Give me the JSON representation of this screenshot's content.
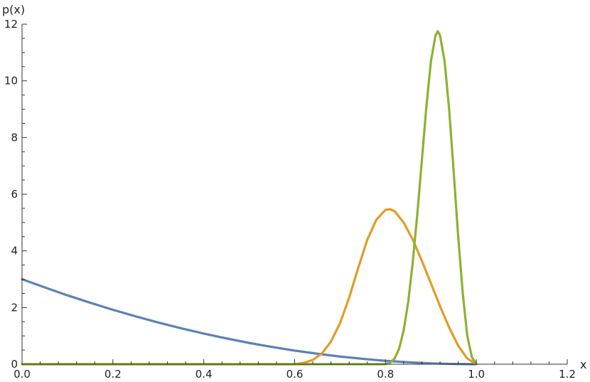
{
  "chart_data": {
    "type": "line",
    "title": "",
    "xlabel": "x",
    "ylabel": "p(x)",
    "xlim": [
      0,
      1.2
    ],
    "ylim": [
      0,
      12
    ],
    "x_ticks": [
      0.0,
      0.2,
      0.4,
      0.6,
      0.8,
      1.0,
      1.2
    ],
    "x_tick_labels": [
      "0.0",
      "0.2",
      "0.4",
      "0.6",
      "0.8",
      "1.0",
      "1.2"
    ],
    "y_ticks": [
      0,
      2,
      4,
      6,
      8,
      10,
      12
    ],
    "y_tick_labels": [
      "0",
      "2",
      "4",
      "6",
      "8",
      "10",
      "12"
    ],
    "grid": false,
    "legend": "none",
    "series": [
      {
        "color": "#5e81b5",
        "x": [
          0.0,
          0.05,
          0.1,
          0.15,
          0.2,
          0.25,
          0.3,
          0.35,
          0.4,
          0.45,
          0.5,
          0.55,
          0.6,
          0.65,
          0.7,
          0.75,
          0.8,
          0.85,
          0.9,
          0.95,
          1.0
        ],
        "y": [
          3.0,
          2.71,
          2.43,
          2.17,
          1.92,
          1.69,
          1.47,
          1.27,
          1.08,
          0.91,
          0.75,
          0.61,
          0.48,
          0.37,
          0.27,
          0.19,
          0.12,
          0.07,
          0.03,
          0.01,
          0.0
        ]
      },
      {
        "color": "#e19c24",
        "x": [
          0.0,
          0.6,
          0.62,
          0.64,
          0.66,
          0.68,
          0.7,
          0.72,
          0.74,
          0.76,
          0.78,
          0.8,
          0.81,
          0.82,
          0.84,
          0.86,
          0.88,
          0.9,
          0.92,
          0.94,
          0.96,
          0.98,
          1.0
        ],
        "y": [
          0.0,
          0.0,
          0.05,
          0.15,
          0.38,
          0.8,
          1.45,
          2.35,
          3.4,
          4.4,
          5.1,
          5.45,
          5.47,
          5.4,
          5.0,
          4.4,
          3.65,
          2.85,
          2.05,
          1.3,
          0.65,
          0.2,
          0.0
        ]
      },
      {
        "color": "#8fb032",
        "x": [
          0.0,
          0.8,
          0.81,
          0.82,
          0.83,
          0.84,
          0.85,
          0.86,
          0.87,
          0.88,
          0.89,
          0.9,
          0.91,
          0.915,
          0.92,
          0.93,
          0.94,
          0.95,
          0.96,
          0.97,
          0.98,
          0.99,
          1.0
        ],
        "y": [
          0.0,
          0.0,
          0.05,
          0.2,
          0.55,
          1.2,
          2.2,
          3.6,
          5.3,
          7.2,
          9.1,
          10.7,
          11.6,
          11.75,
          11.6,
          10.7,
          9.0,
          6.8,
          4.5,
          2.5,
          1.0,
          0.25,
          0.0
        ]
      }
    ]
  }
}
